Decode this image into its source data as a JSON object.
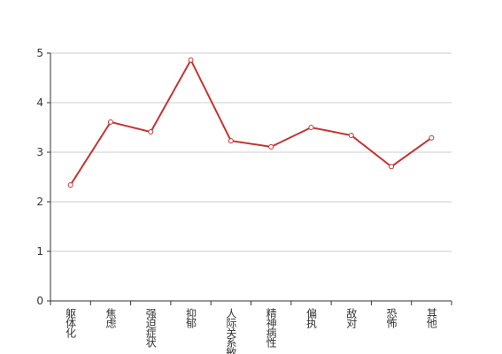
{
  "chart_data": {
    "type": "line",
    "categories": [
      "躯体化",
      "焦虑",
      "强迫症状",
      "抑郁",
      "人际关系敏感",
      "精神病性",
      "偏执",
      "敌对",
      "恐怖",
      "其他"
    ],
    "series": [
      {
        "color": "#c23531",
        "values": [
          2.34,
          3.61,
          3.41,
          4.86,
          3.23,
          3.11,
          3.5,
          3.34,
          2.71,
          3.29
        ]
      }
    ],
    "ylim": [
      0,
      5
    ],
    "yticks": [
      0,
      1,
      2,
      3,
      4,
      5
    ],
    "grid": true
  }
}
